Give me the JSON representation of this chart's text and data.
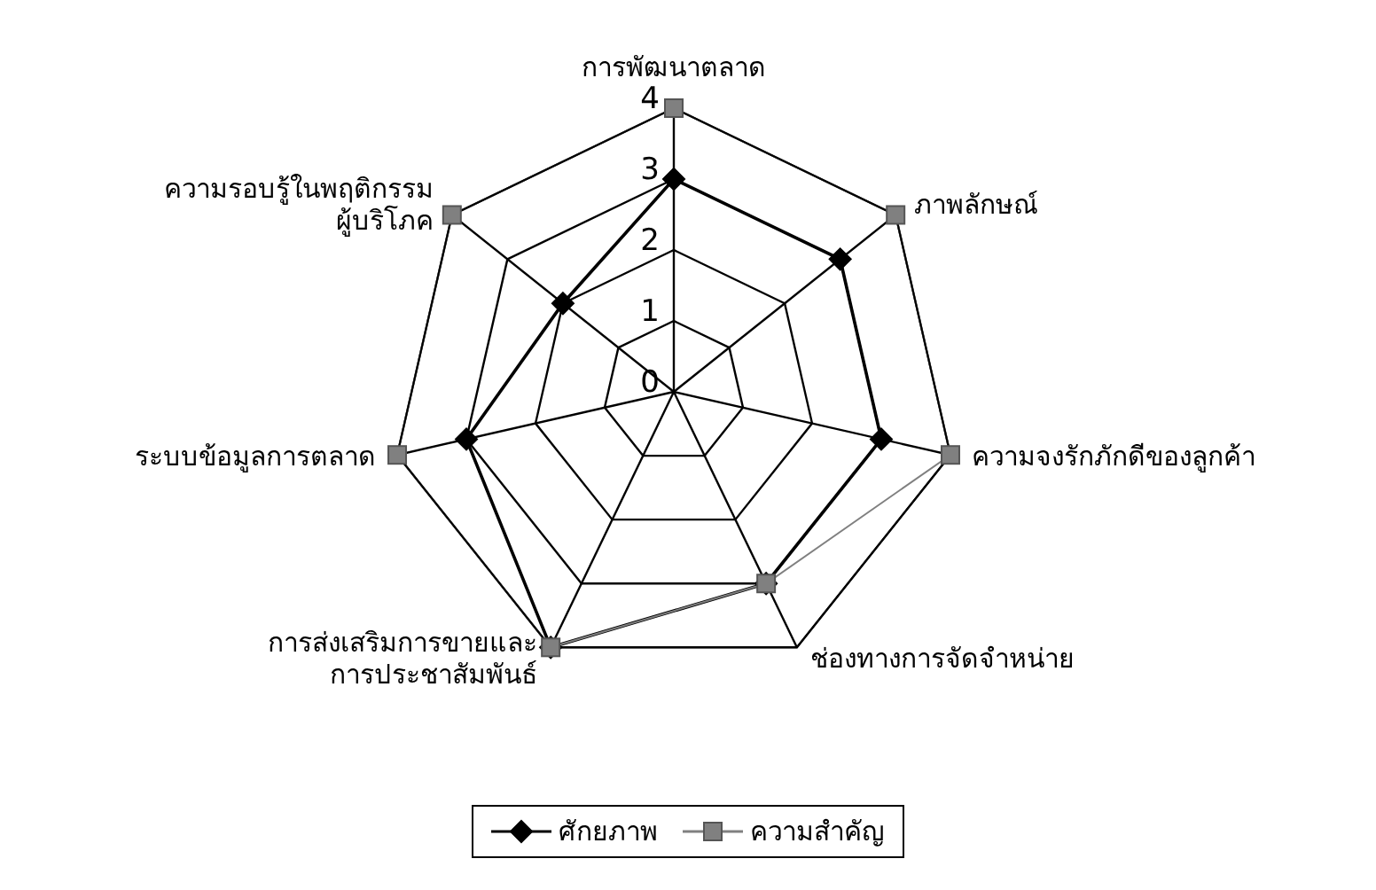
{
  "chart_data": {
    "type": "radar",
    "categories": [
      "การพัฒนาตลาด",
      "ภาพลักษณ์",
      "ความจงรักภักดีของลูกค้า",
      "ช่องทางการจัดจำหน่าย",
      "การส่งเสริมการขายและ\nการประชาสัมพันธ์",
      "ระบบข้อมูลการตลาด",
      "ความรอบรู้ในพฤติกรรม\nผู้บริโภค"
    ],
    "series": [
      {
        "name": "ศักยภาพ",
        "color": "#000000",
        "marker": "diamond",
        "values": [
          3,
          3,
          3,
          3,
          4,
          3,
          2
        ]
      },
      {
        "name": "ความสำคัญ",
        "color": "#808080",
        "marker": "square",
        "values": [
          4,
          4,
          4,
          3,
          4,
          4,
          4
        ]
      }
    ],
    "ylim": [
      0,
      4
    ],
    "yticks": [
      0,
      1,
      2,
      3,
      4
    ],
    "grid": true,
    "legend": "bottom"
  }
}
